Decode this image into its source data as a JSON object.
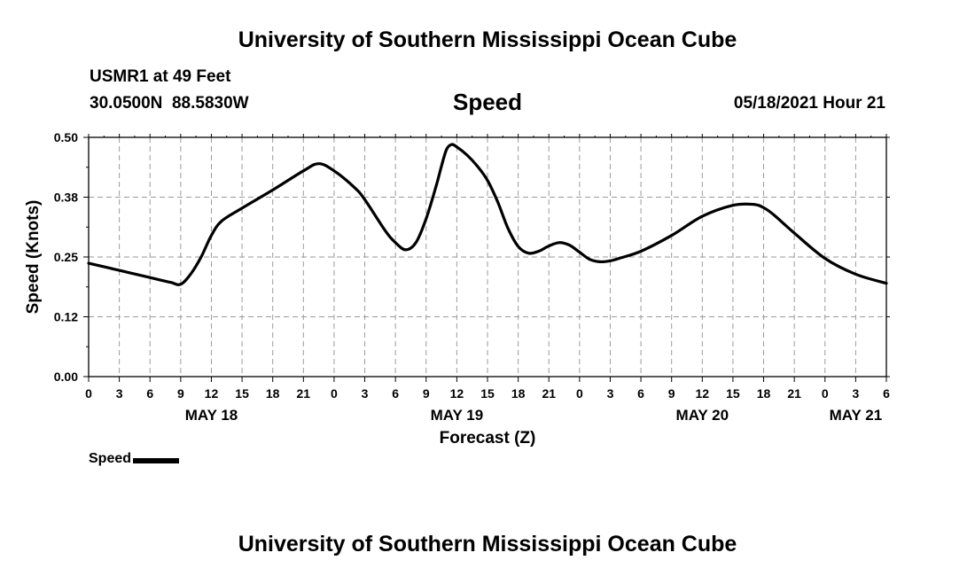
{
  "page": {
    "top_title": "University of Southern Mississippi Ocean Cube",
    "bottom_title": "University of Southern Mississippi Ocean Cube",
    "station": "USMR1 at 49 Feet",
    "coords": "30.0500N  88.5830W",
    "datestamp": "05/18/2021 Hour 21"
  },
  "chart_data": {
    "type": "line",
    "title": "Speed",
    "xlabel": "Forecast (Z)",
    "ylabel": "Speed (Knots)",
    "x_unit": "hours from 05/18/2021 00Z",
    "xlim": [
      0,
      78
    ],
    "ylim": [
      0,
      0.5
    ],
    "yticks": [
      0,
      0.125,
      0.25,
      0.375,
      0.5
    ],
    "ytick_labels": [
      "0.00",
      "0.12",
      "0.25",
      "0.38",
      "0.50"
    ],
    "xticks": [
      0,
      3,
      6,
      9,
      12,
      15,
      18,
      21,
      24,
      27,
      30,
      33,
      36,
      39,
      42,
      45,
      48,
      51,
      54,
      57,
      60,
      63,
      66,
      69,
      72,
      75,
      78
    ],
    "xtick_labels": [
      "0",
      "3",
      "6",
      "9",
      "12",
      "15",
      "18",
      "21",
      "0",
      "3",
      "6",
      "9",
      "12",
      "15",
      "18",
      "21",
      "0",
      "3",
      "6",
      "9",
      "12",
      "15",
      "18",
      "21",
      "0",
      "3",
      "6"
    ],
    "day_labels": [
      {
        "x": 12,
        "label": "MAY 18"
      },
      {
        "x": 36,
        "label": "MAY 19"
      },
      {
        "x": 60,
        "label": "MAY 20"
      },
      {
        "x": 75,
        "label": "MAY 21"
      }
    ],
    "grid": true,
    "legend": {
      "position": "bottom-left",
      "label": "Speed"
    },
    "series": [
      {
        "name": "Speed",
        "color": "#000000",
        "x": [
          0,
          3,
          6,
          8,
          9,
          10,
          11,
          12,
          13,
          15,
          18,
          21,
          22.5,
          24,
          26,
          27,
          29,
          30,
          31,
          32,
          33,
          34,
          34.5,
          35,
          35.5,
          36,
          37,
          38,
          39,
          40,
          41,
          42,
          43,
          44,
          45,
          46,
          47,
          48,
          49,
          50,
          51,
          52,
          54,
          57,
          60,
          63,
          65,
          66,
          67,
          69,
          72,
          75,
          78
        ],
        "y": [
          0.237,
          0.222,
          0.207,
          0.197,
          0.193,
          0.215,
          0.25,
          0.295,
          0.325,
          0.352,
          0.39,
          0.43,
          0.445,
          0.43,
          0.395,
          0.37,
          0.305,
          0.28,
          0.265,
          0.28,
          0.33,
          0.4,
          0.44,
          0.475,
          0.485,
          0.48,
          0.463,
          0.44,
          0.41,
          0.365,
          0.31,
          0.272,
          0.258,
          0.262,
          0.273,
          0.28,
          0.275,
          0.26,
          0.245,
          0.24,
          0.242,
          0.248,
          0.262,
          0.295,
          0.335,
          0.358,
          0.36,
          0.353,
          0.338,
          0.3,
          0.247,
          0.214,
          0.195
        ]
      }
    ]
  }
}
